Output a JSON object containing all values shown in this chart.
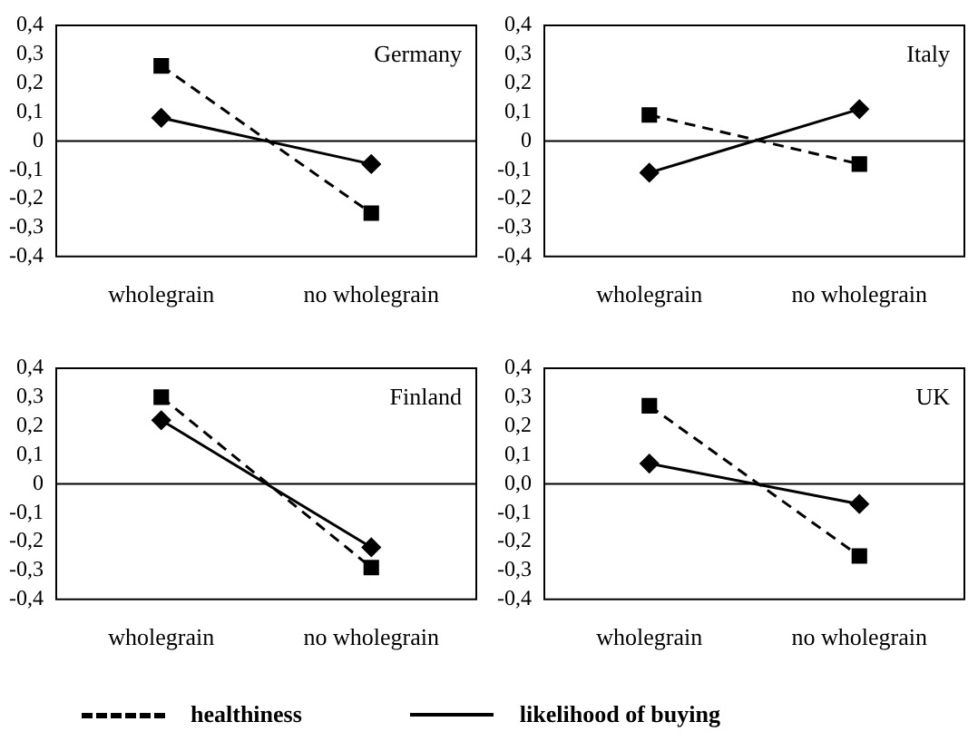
{
  "chart_data": [
    {
      "type": "line",
      "title": "Germany",
      "categories": [
        "wholegrain",
        "no wholegrain"
      ],
      "ylim": [
        -0.4,
        0.4
      ],
      "yticks": [
        {
          "value": -0.4,
          "label": "-0,4"
        },
        {
          "value": -0.3,
          "label": "-0,3"
        },
        {
          "value": -0.2,
          "label": "-0,2"
        },
        {
          "value": -0.1,
          "label": "-0,1"
        },
        {
          "value": 0,
          "label": "0"
        },
        {
          "value": 0.1,
          "label": "0,1"
        },
        {
          "value": 0.2,
          "label": "0,2"
        },
        {
          "value": 0.3,
          "label": "0,3"
        },
        {
          "value": 0.4,
          "label": "0,4"
        }
      ],
      "ref_lines": [
        {
          "axis": "y",
          "value": 0
        }
      ],
      "legend": "bottom",
      "grid": false,
      "series": [
        {
          "name": "healthiness",
          "color": "#000000",
          "marker": "square",
          "line_style": "dashed",
          "values": [
            0.26,
            -0.25
          ]
        },
        {
          "name": "likelihood of buying",
          "color": "#000000",
          "marker": "diamond",
          "line_style": "solid",
          "values": [
            0.08,
            -0.08
          ]
        }
      ]
    },
    {
      "type": "line",
      "title": "Italy",
      "categories": [
        "wholegrain",
        "no wholegrain"
      ],
      "ylim": [
        -0.4,
        0.4
      ],
      "yticks": [
        {
          "value": -0.4,
          "label": "-0,4"
        },
        {
          "value": -0.3,
          "label": "-0,3"
        },
        {
          "value": -0.2,
          "label": "-0,2"
        },
        {
          "value": -0.1,
          "label": "-0,1"
        },
        {
          "value": 0,
          "label": "0"
        },
        {
          "value": 0.1,
          "label": "0,1"
        },
        {
          "value": 0.2,
          "label": "0,2"
        },
        {
          "value": 0.3,
          "label": "0,3"
        },
        {
          "value": 0.4,
          "label": "0,4"
        }
      ],
      "ref_lines": [
        {
          "axis": "y",
          "value": 0
        }
      ],
      "legend": "bottom",
      "grid": false,
      "series": [
        {
          "name": "healthiness",
          "color": "#000000",
          "marker": "square",
          "line_style": "dashed",
          "values": [
            0.09,
            -0.08
          ]
        },
        {
          "name": "likelihood of buying",
          "color": "#000000",
          "marker": "diamond",
          "line_style": "solid",
          "values": [
            -0.11,
            0.11
          ]
        }
      ]
    },
    {
      "type": "line",
      "title": "Finland",
      "categories": [
        "wholegrain",
        "no wholegrain"
      ],
      "ylim": [
        -0.4,
        0.4
      ],
      "yticks": [
        {
          "value": -0.4,
          "label": "-0,4"
        },
        {
          "value": -0.3,
          "label": "-0,3"
        },
        {
          "value": -0.2,
          "label": "-0,2"
        },
        {
          "value": -0.1,
          "label": "-0,1"
        },
        {
          "value": 0,
          "label": "0"
        },
        {
          "value": 0.1,
          "label": "0,1"
        },
        {
          "value": 0.2,
          "label": "0,2"
        },
        {
          "value": 0.3,
          "label": "0,3"
        },
        {
          "value": 0.4,
          "label": "0,4"
        }
      ],
      "ref_lines": [
        {
          "axis": "y",
          "value": 0
        }
      ],
      "legend": "bottom",
      "grid": false,
      "series": [
        {
          "name": "healthiness",
          "color": "#000000",
          "marker": "square",
          "line_style": "dashed",
          "values": [
            0.3,
            -0.29
          ]
        },
        {
          "name": "likelihood of buying",
          "color": "#000000",
          "marker": "diamond",
          "line_style": "solid",
          "values": [
            0.22,
            -0.22
          ]
        }
      ]
    },
    {
      "type": "line",
      "title": "UK",
      "categories": [
        "wholegrain",
        "no wholegrain"
      ],
      "ylim": [
        -0.4,
        0.4
      ],
      "yticks": [
        {
          "value": -0.4,
          "label": "-0,4"
        },
        {
          "value": -0.3,
          "label": "-0,3"
        },
        {
          "value": -0.2,
          "label": "-0,2"
        },
        {
          "value": -0.1,
          "label": "-0,1"
        },
        {
          "value": 0,
          "label": "0,0"
        },
        {
          "value": 0.1,
          "label": "0,1"
        },
        {
          "value": 0.2,
          "label": "0,2"
        },
        {
          "value": 0.3,
          "label": "0,3"
        },
        {
          "value": 0.4,
          "label": "0,4"
        }
      ],
      "ref_lines": [
        {
          "axis": "y",
          "value": 0
        }
      ],
      "legend": "bottom",
      "grid": false,
      "series": [
        {
          "name": "healthiness",
          "color": "#000000",
          "marker": "square",
          "line_style": "dashed",
          "values": [
            0.27,
            -0.25
          ]
        },
        {
          "name": "likelihood of buying",
          "color": "#000000",
          "marker": "diamond",
          "line_style": "solid",
          "values": [
            0.07,
            -0.07
          ]
        }
      ]
    }
  ]
}
